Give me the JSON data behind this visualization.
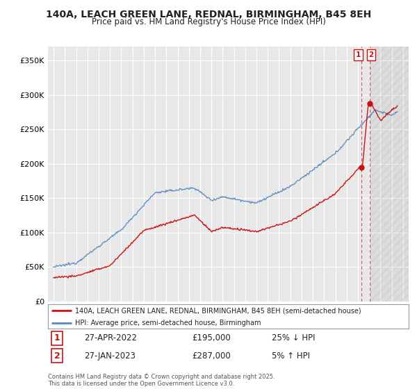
{
  "title": "140A, LEACH GREEN LANE, REDNAL, BIRMINGHAM, B45 8EH",
  "subtitle": "Price paid vs. HM Land Registry's House Price Index (HPI)",
  "ylim": [
    0,
    370000
  ],
  "yticks": [
    0,
    50000,
    100000,
    150000,
    200000,
    250000,
    300000,
    350000
  ],
  "ytick_labels": [
    "£0",
    "£50K",
    "£100K",
    "£150K",
    "£200K",
    "£250K",
    "£300K",
    "£350K"
  ],
  "xlim_start": 1994.5,
  "xlim_end": 2026.5,
  "background_color": "#ffffff",
  "plot_bg_color": "#e8e8e8",
  "grid_color": "#ffffff",
  "hpi_color": "#5588bb",
  "price_color": "#cc1111",
  "sale1_price": 195000,
  "sale1_date": "27-APR-2022",
  "sale1_hpi_diff": "25% ↓ HPI",
  "sale1_year": 2022.32,
  "sale2_price": 287000,
  "sale2_date": "27-JAN-2023",
  "sale2_hpi_diff": "5% ↑ HPI",
  "sale2_year": 2023.07,
  "legend_label1": "140A, LEACH GREEN LANE, REDNAL, BIRMINGHAM, B45 8EH (semi-detached house)",
  "legend_label2": "HPI: Average price, semi-detached house, Birmingham",
  "footnote": "Contains HM Land Registry data © Crown copyright and database right 2025.\nThis data is licensed under the Open Government Licence v3.0."
}
